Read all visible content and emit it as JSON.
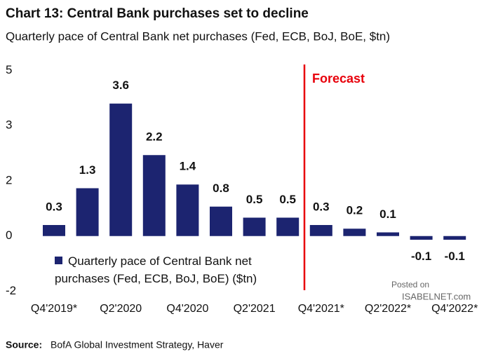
{
  "chart_data": {
    "type": "bar",
    "title": "Chart 13: Central Bank purchases set to decline",
    "subtitle": "Quarterly pace of Central Bank net purchases (Fed, ECB, BoJ, BoE, $tn)",
    "categories": [
      "Q4'2019*",
      null,
      "Q2'2020",
      null,
      "Q4'2020",
      null,
      "Q2'2021",
      null,
      "Q4'2021*",
      null,
      "Q2'2022*",
      null,
      "Q4'2022*"
    ],
    "series": [
      {
        "name": "Quarterly pace of Central Bank net purchases (Fed, ECB, BoJ, BoE) ($tn)",
        "color": "#1c2470",
        "values": [
          0.3,
          1.3,
          3.6,
          2.2,
          1.4,
          0.8,
          0.5,
          0.5,
          0.3,
          0.2,
          0.1,
          -0.1,
          -0.1
        ]
      }
    ],
    "ylim": [
      -1.7,
      4.7
    ],
    "yticks": [
      {
        "value": -1.5,
        "label": "-2"
      },
      0,
      {
        "value": 1.5,
        "label": "2"
      },
      3,
      {
        "value": 4.5,
        "label": "5"
      }
    ],
    "grid": false,
    "annotations": [
      {
        "text": "Forecast",
        "color": "#e8000b"
      }
    ],
    "watermark": [
      "Posted on",
      "ISABELNET.com"
    ],
    "source_label": "Source:",
    "source": "BofA Global Investment Strategy, Haver"
  }
}
